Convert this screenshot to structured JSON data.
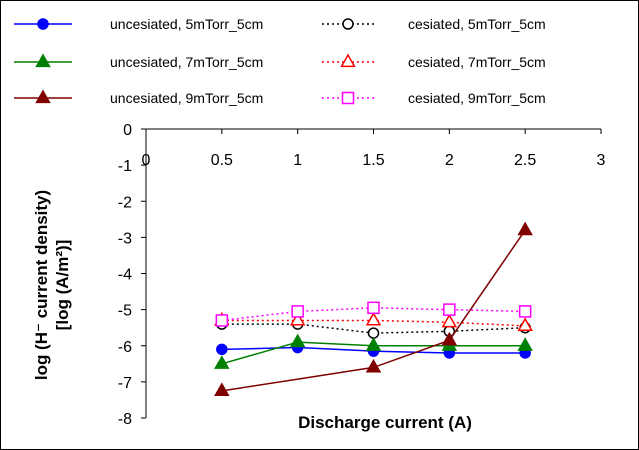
{
  "chart_data": {
    "type": "line",
    "xlabel": "Discharge current (A)",
    "ylabel_line1": "log (H⁻ current density)",
    "ylabel_line2": "[log (A/m²)]",
    "xlim": [
      0,
      3
    ],
    "ylim": [
      -8,
      0
    ],
    "x_ticks": [
      "0",
      "0.5",
      "1",
      "1.5",
      "2",
      "2.5",
      "3"
    ],
    "y_ticks": [
      "0",
      "-1",
      "-2",
      "-3",
      "-4",
      "-5",
      "-6",
      "-7",
      "-8"
    ],
    "grid": false,
    "legend_position": "top",
    "series": [
      {
        "name": "uncesiated, 5mTorr_5cm",
        "color": "#0000ff",
        "dash": "solid",
        "marker": "circle-filled",
        "x": [
          0.5,
          1,
          1.5,
          2,
          2.5
        ],
        "y": [
          -6.1,
          -6.05,
          -6.15,
          -6.2,
          -6.2
        ]
      },
      {
        "name": "cesiated, 5mTorr_5cm",
        "color": "#000000",
        "dash": "dotted",
        "marker": "circle-open",
        "x": [
          0.5,
          1,
          1.5,
          2,
          2.5
        ],
        "y": [
          -5.4,
          -5.4,
          -5.65,
          -5.6,
          -5.5
        ]
      },
      {
        "name": "uncesiated, 7mTorr_5cm",
        "color": "#008000",
        "dash": "solid",
        "marker": "triangle-filled",
        "x": [
          0.5,
          1,
          1.5,
          2,
          2.5
        ],
        "y": [
          -6.5,
          -5.9,
          -6.0,
          -6.0,
          -6.0
        ]
      },
      {
        "name": "cesiated, 7mTorr_5cm",
        "color": "#ff0000",
        "dash": "dotted",
        "marker": "triangle-open",
        "x": [
          0.5,
          1,
          1.5,
          2,
          2.5
        ],
        "y": [
          -5.3,
          -5.3,
          -5.3,
          -5.35,
          -5.45
        ]
      },
      {
        "name": "uncesiated, 9mTorr_5cm",
        "color": "#800000",
        "dash": "solid",
        "marker": "triangle-filled",
        "x": [
          0.5,
          1.5,
          2,
          2.5
        ],
        "y": [
          -7.25,
          -6.6,
          -5.85,
          -2.8
        ]
      },
      {
        "name": "cesiated, 9mTorr_5cm",
        "color": "#ff00ff",
        "dash": "dotted",
        "marker": "square-open",
        "x": [
          0.5,
          1,
          1.5,
          2,
          2.5
        ],
        "y": [
          -5.3,
          -5.05,
          -4.95,
          -5.0,
          -5.05
        ]
      }
    ]
  }
}
